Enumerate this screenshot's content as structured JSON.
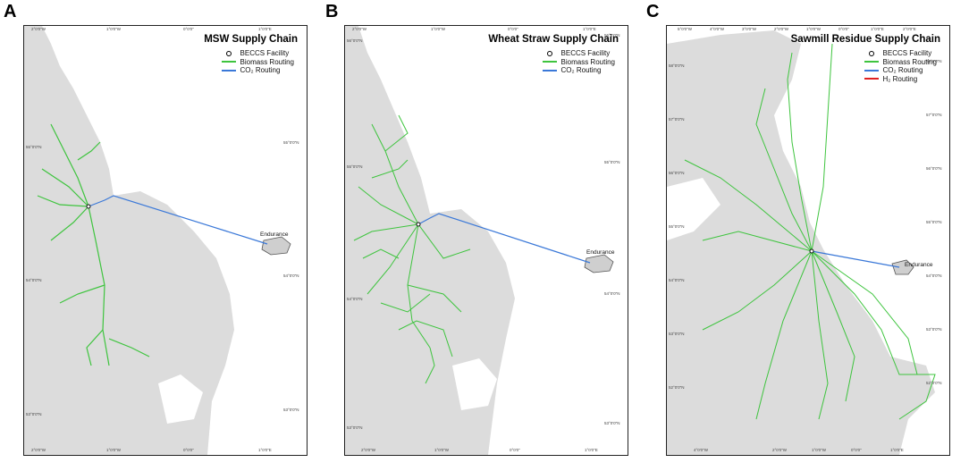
{
  "colors": {
    "land": "#dcdcdc",
    "biomass": "#3ec43e",
    "co2": "#3a78d8",
    "h2": "#e02020",
    "facility": "#111111"
  },
  "panels": [
    {
      "letter": "A",
      "title": "MSW Supply Chain",
      "legend": [
        {
          "icon": "facility-ring",
          "label": "BECCS Facility"
        },
        {
          "icon": "biomass-line",
          "label": "Biomass Routing"
        },
        {
          "icon": "co2-line",
          "label": "CO₂ Routing"
        }
      ],
      "site_label": "Endurance",
      "ticks_top": [
        "2°0'0\"W",
        "1°0'0\"W",
        "0°0'0\"",
        "1°0'0\"E"
      ],
      "ticks_bottom": [
        "2°0'0\"W",
        "1°0'0\"W",
        "0°0'0\"",
        "1°0'0\"E"
      ],
      "ticks_left": [
        "55°0'0\"N",
        "54°0'0\"N",
        "53°0'0\"N"
      ],
      "ticks_right": [
        "55°0'0\"N",
        "54°0'0\"N",
        "53°0'0\"N"
      ]
    },
    {
      "letter": "B",
      "title": "Wheat Straw Supply Chain",
      "legend": [
        {
          "icon": "facility-ring",
          "label": "BECCS Facility"
        },
        {
          "icon": "biomass-line",
          "label": "Biomass Routing"
        },
        {
          "icon": "co2-line",
          "label": "CO₂ Routing"
        }
      ],
      "site_label": "Endurance",
      "ticks_top": [
        "2°0'0\"W",
        "1°0'0\"W",
        "0°0'0\"",
        "1°0'0\"E"
      ],
      "ticks_bottom": [
        "2°0'0\"W",
        "1°0'0\"W",
        "0°0'0\"",
        "1°0'0\"E"
      ],
      "ticks_left": [
        "56°0'0\"N",
        "55°0'0\"N",
        "54°0'0\"N",
        "53°0'0\"N"
      ],
      "ticks_right": [
        "56°0'0\"N",
        "55°0'0\"N",
        "54°0'0\"N",
        "53°0'0\"N"
      ]
    },
    {
      "letter": "C",
      "title": "Sawmill Residue Supply Chain",
      "legend": [
        {
          "icon": "facility-ring",
          "label": "BECCS Facility"
        },
        {
          "icon": "biomass-line",
          "label": "Biomass Routing"
        },
        {
          "icon": "co2-line",
          "label": "CO₂ Routing"
        },
        {
          "icon": "h2-line",
          "label": "H₂ Routing"
        }
      ],
      "site_label": "Endurance",
      "ticks_top": [
        "5°0'0\"W",
        "4°0'0\"W",
        "3°0'0\"W",
        "2°0'0\"W",
        "1°0'0\"W",
        "0°0'0\"",
        "1°0'0\"E",
        "2°0'0\"E"
      ],
      "ticks_bottom": [
        "4°0'0\"W",
        "2°0'0\"W",
        "1°0'0\"W",
        "0°0'0\"",
        "1°0'0\"E"
      ],
      "ticks_left": [
        "58°0'0\"N",
        "57°0'0\"N",
        "56°0'0\"N",
        "55°0'0\"N",
        "54°0'0\"N",
        "53°0'0\"N",
        "52°0'0\"N"
      ],
      "ticks_right": [
        "58°0'0\"N",
        "57°0'0\"N",
        "56°0'0\"N",
        "55°0'0\"N",
        "54°0'0\"N",
        "53°0'0\"N",
        "52°0'0\"N"
      ]
    }
  ]
}
